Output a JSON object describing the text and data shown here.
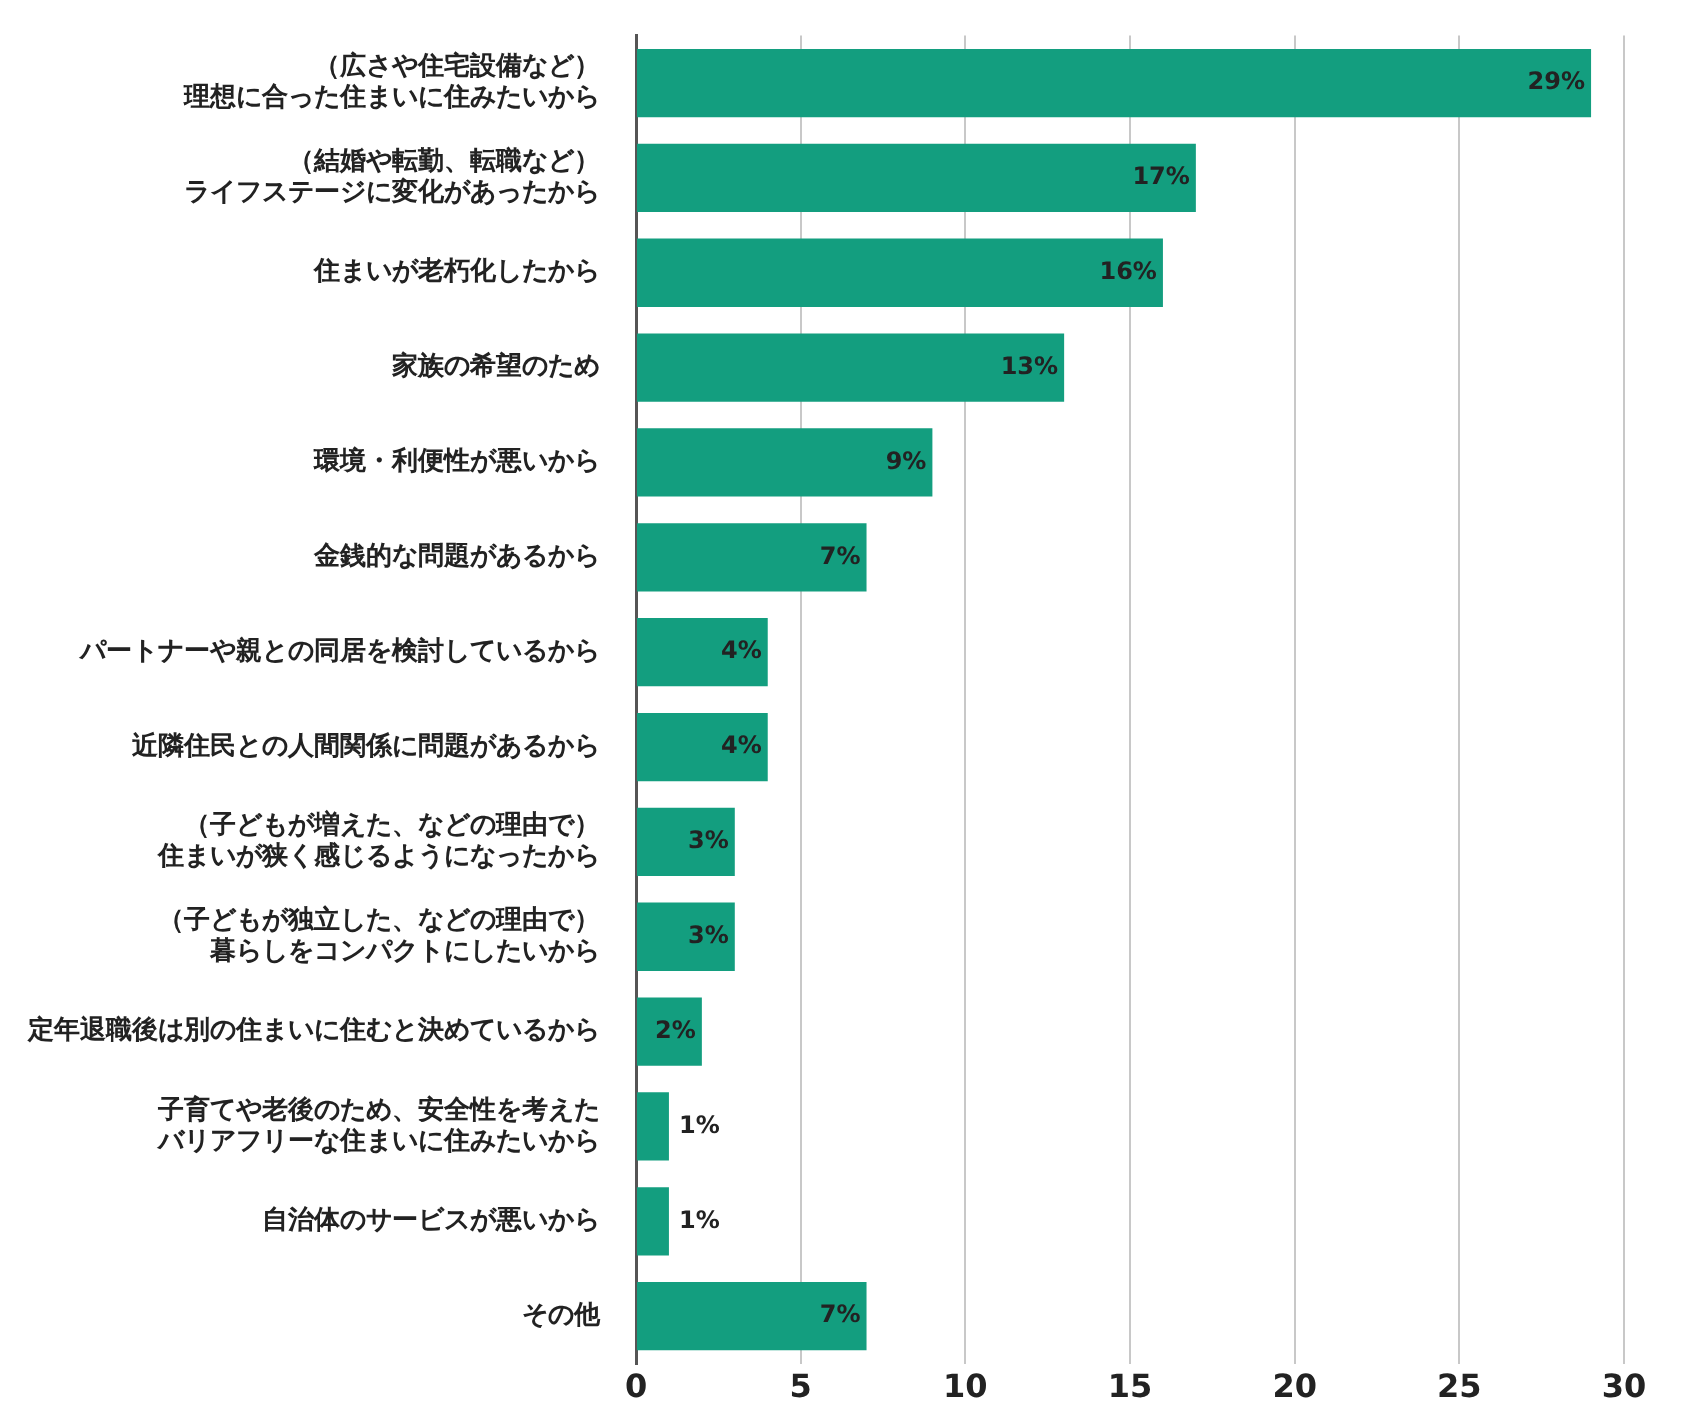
{
  "chart_data": {
    "type": "bar",
    "orientation": "horizontal",
    "categories": [
      "（広さや住宅設備など）理想に合った住まいに住みたいから",
      "（結婚や転勤、転職など）ライフステージに変化があったから",
      "住まいが老朽化したから",
      "家族の希望のため",
      "環境・利便性が悪いから",
      "金銭的な問題があるから",
      "パートナーや親との同居を検討しているから",
      "近隣住民との人間関係に問題があるから",
      "（子どもが増えた、などの理由で）住まいが狭く感じるようになったから",
      "（子どもが独立した、などの理由で）暮らしをコンパクトにしたいから",
      "定年退職後は別の住まいに住むと決めているから",
      "子育てや老後のため、安全性を考えたバリアフリーな住まいに住みたいから",
      "自治体のサービスが悪いから",
      "その他"
    ],
    "values": [
      29,
      17,
      16,
      13,
      9,
      7,
      4,
      4,
      3,
      3,
      2,
      1,
      1,
      7
    ],
    "value_labels": [
      "29%",
      "17%",
      "16%",
      "13%",
      "9%",
      "7%",
      "4%",
      "4%",
      "3%",
      "3%",
      "2%",
      "1%",
      "1%",
      "7%"
    ],
    "color": "#139e7f",
    "xlim": [
      0,
      30
    ],
    "xticks": [
      0,
      5,
      10,
      15,
      20,
      25,
      30
    ],
    "grid": "x",
    "legend": false
  }
}
